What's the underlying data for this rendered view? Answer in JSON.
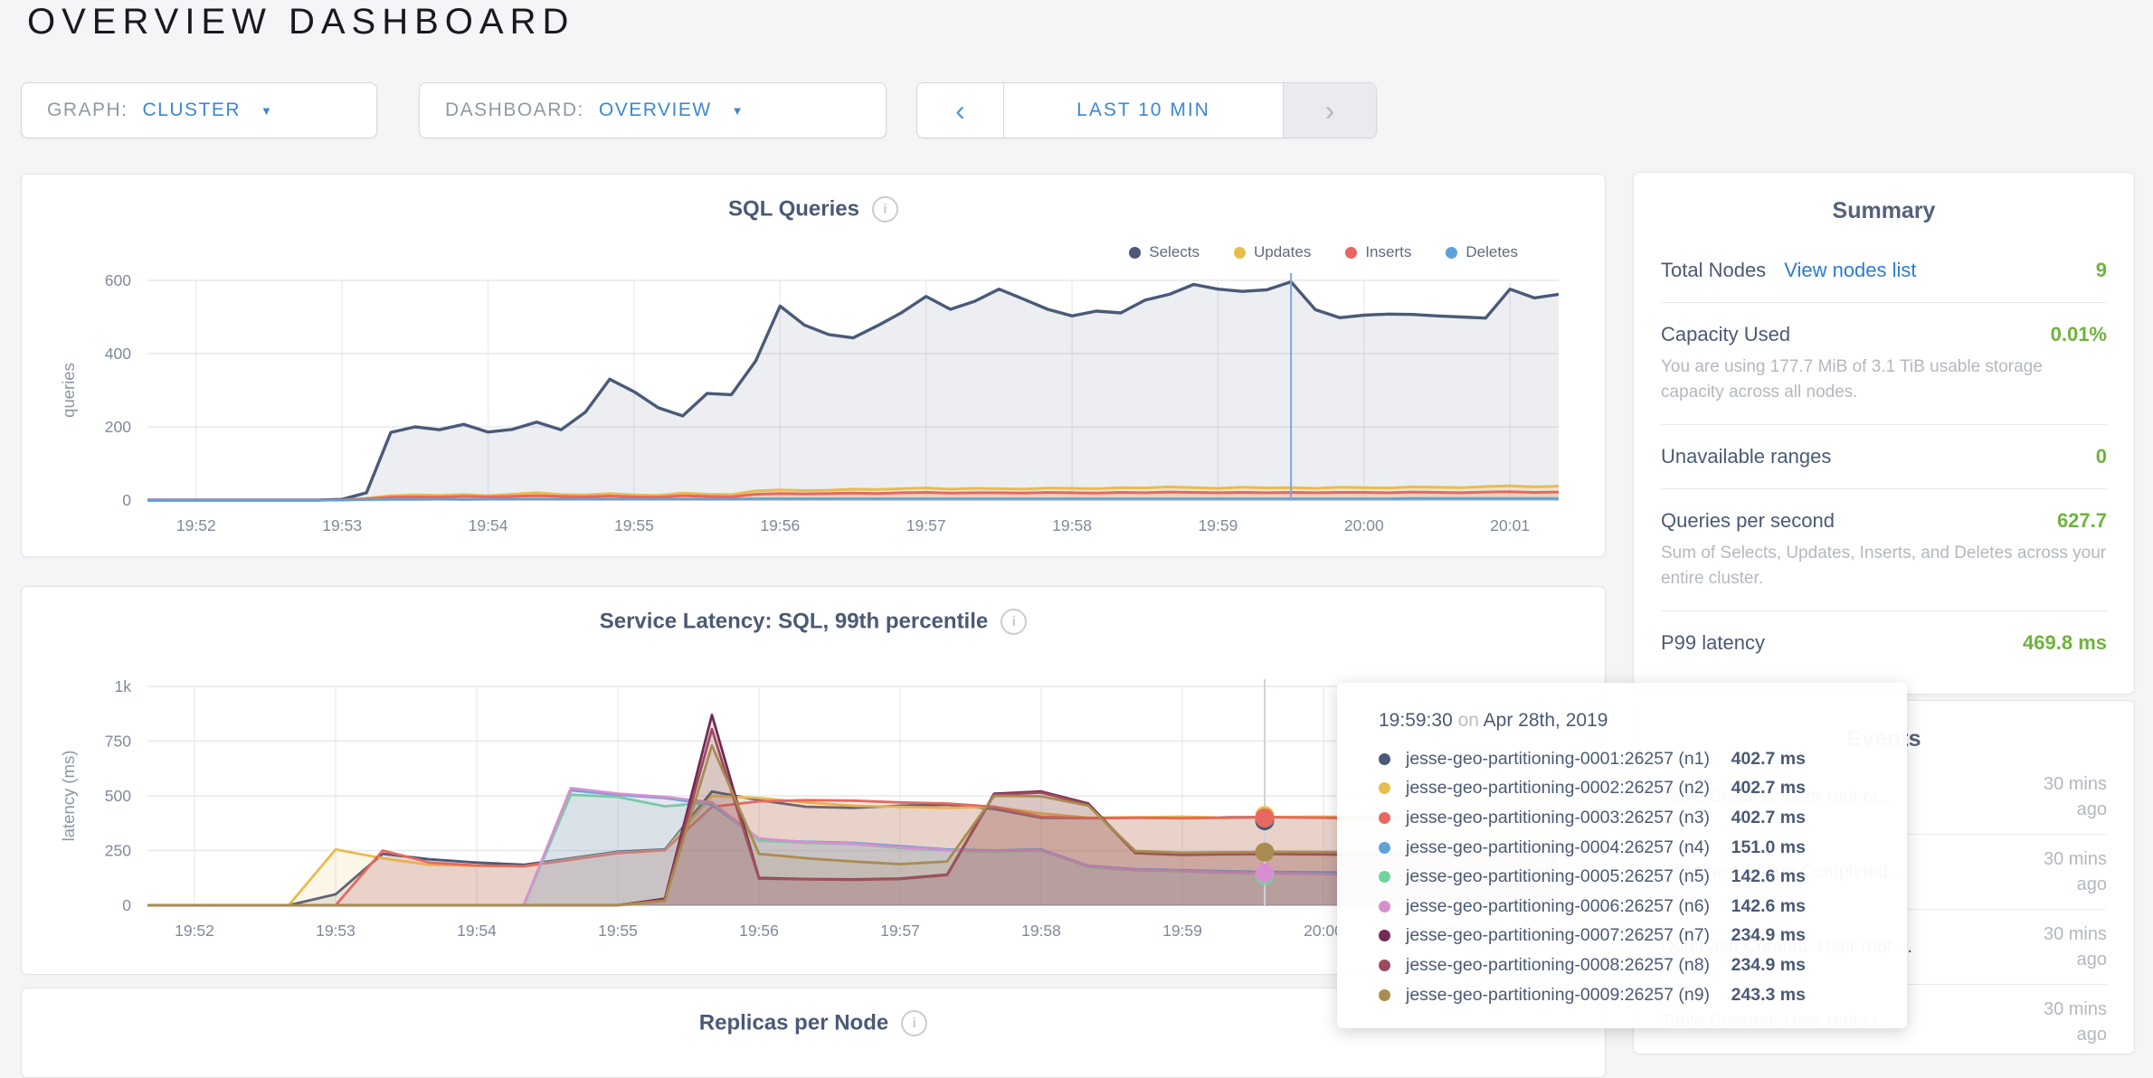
{
  "page": {
    "title": "OVERVIEW DASHBOARD"
  },
  "icons": {
    "caret": "▼",
    "prev": "‹",
    "next": "›",
    "info": "i"
  },
  "controls": {
    "graph_label": "GRAPH:",
    "graph_value": "CLUSTER",
    "dashboard_label": "DASHBOARD:",
    "dashboard_value": "OVERVIEW",
    "time_range": "LAST 10 MIN"
  },
  "colors": {
    "accent_blue": "#3d87d2",
    "link_blue": "#2d7ad3",
    "green": "#6fb33e",
    "slate": "#4a5a75"
  },
  "panels": {
    "replicas_title": "Replicas per Node"
  },
  "summary": {
    "title": "Summary",
    "total_nodes_label": "Total Nodes",
    "view_nodes_link": "View nodes list",
    "total_nodes_value": "9",
    "capacity_label": "Capacity Used",
    "capacity_value": "0.01%",
    "capacity_desc": "You are using 177.7 MiB of 3.1 TiB usable storage capacity across all nodes.",
    "unavailable_label": "Unavailable ranges",
    "unavailable_value": "0",
    "qps_label": "Queries per second",
    "qps_value": "627.7",
    "qps_desc": "Sum of Selects, Updates, Inserts, and Deletes across your entire cluster.",
    "p99_label": "P99 latency",
    "p99_value": "469.8 ms"
  },
  "events": {
    "title": "Events",
    "items": [
      {
        "text": "Table Created: User root cr...",
        "time": "30 mins ago"
      },
      {
        "text": "Schema Change Completed...",
        "time": "30 mins ago"
      },
      {
        "text": "Database Created: User root ...",
        "time": "30 mins ago"
      },
      {
        "text": "Table Created: User root cr...",
        "time": "30 mins ago"
      }
    ]
  },
  "tooltip": {
    "time": "19:59:30",
    "on": "on",
    "date": "Apr 28th, 2019",
    "rows": [
      {
        "color": "#4a5a78",
        "name": "jesse-geo-partitioning-0001:26257 (n1)",
        "value": "402.7 ms"
      },
      {
        "color": "#e9bc4e",
        "name": "jesse-geo-partitioning-0002:26257 (n2)",
        "value": "402.7 ms"
      },
      {
        "color": "#e7685f",
        "name": "jesse-geo-partitioning-0003:26257 (n3)",
        "value": "402.7 ms"
      },
      {
        "color": "#5ea2d9",
        "name": "jesse-geo-partitioning-0004:26257 (n4)",
        "value": "151.0 ms"
      },
      {
        "color": "#6fd39e",
        "name": "jesse-geo-partitioning-0005:26257 (n5)",
        "value": "142.6 ms"
      },
      {
        "color": "#d88fd0",
        "name": "jesse-geo-partitioning-0006:26257 (n6)",
        "value": "142.6 ms"
      },
      {
        "color": "#722b52",
        "name": "jesse-geo-partitioning-0007:26257 (n7)",
        "value": "234.9 ms"
      },
      {
        "color": "#9e4a5e",
        "name": "jesse-geo-partitioning-0008:26257 (n8)",
        "value": "234.9 ms"
      },
      {
        "color": "#a98c4f",
        "name": "jesse-geo-partitioning-0009:26257 (n9)",
        "value": "243.3 ms"
      }
    ]
  },
  "chart_data": [
    {
      "type": "area",
      "title": "SQL Queries",
      "ylabel": "queries",
      "ylim": [
        0,
        600
      ],
      "grid": true,
      "legend_position": "top-right",
      "x_start": "19:51:40",
      "x_step_s": 10,
      "x_ticks": [
        {
          "i": 2,
          "label": "19:52"
        },
        {
          "i": 8,
          "label": "19:53"
        },
        {
          "i": 14,
          "label": "19:54"
        },
        {
          "i": 20,
          "label": "19:55"
        },
        {
          "i": 26,
          "label": "19:56"
        },
        {
          "i": 32,
          "label": "19:57"
        },
        {
          "i": 38,
          "label": "19:58"
        },
        {
          "i": 44,
          "label": "19:59"
        },
        {
          "i": 50,
          "label": "20:00"
        },
        {
          "i": 56,
          "label": "20:01"
        }
      ],
      "y_ticks": [
        {
          "v": 600,
          "label": "600"
        },
        {
          "v": 400,
          "label": "400"
        },
        {
          "v": 200,
          "label": "200"
        },
        {
          "v": 0,
          "label": "0"
        }
      ],
      "crosshair": {
        "i": 47,
        "time": "19:59:30",
        "color": "#7fa6d9"
      },
      "series": [
        {
          "name": "Selects",
          "color": "#4a5a78",
          "fill": "rgba(73,91,120,0.10)",
          "values": [
            0,
            0,
            0,
            0,
            0,
            0,
            0,
            0,
            2,
            20,
            185,
            200,
            192,
            207,
            186,
            193,
            213,
            192,
            240,
            330,
            296,
            252,
            230,
            291,
            288,
            380,
            530,
            478,
            452,
            443,
            476,
            512,
            556,
            521,
            543,
            576,
            549,
            521,
            503,
            516,
            511,
            546,
            562,
            589,
            576,
            570,
            574,
            596,
            520,
            498,
            505,
            508,
            507,
            503,
            500,
            497,
            576,
            552,
            562
          ]
        },
        {
          "name": "Updates",
          "color": "#e9bc4e",
          "fill": "rgba(233,188,78,0.18)",
          "values": [
            0,
            0,
            0,
            0,
            0,
            0,
            0,
            0,
            0,
            5,
            12,
            14,
            13,
            15,
            12,
            16,
            20,
            15,
            14,
            18,
            14,
            13,
            19,
            16,
            15,
            25,
            28,
            26,
            27,
            30,
            29,
            31,
            33,
            30,
            32,
            31,
            30,
            33,
            32,
            31,
            34,
            33,
            36,
            34,
            32,
            35,
            33,
            34,
            32,
            35,
            34,
            33,
            36,
            35,
            34,
            37,
            39,
            36,
            38
          ]
        },
        {
          "name": "Inserts",
          "color": "#e7685f",
          "fill": "rgba(231,104,95,0.15)",
          "values": [
            0,
            0,
            0,
            0,
            0,
            0,
            0,
            0,
            0,
            3,
            8,
            9,
            8,
            10,
            9,
            10,
            12,
            10,
            9,
            11,
            9,
            8,
            12,
            10,
            9,
            16,
            18,
            17,
            18,
            19,
            18,
            20,
            21,
            19,
            20,
            20,
            19,
            21,
            20,
            19,
            21,
            20,
            22,
            21,
            20,
            21,
            20,
            21,
            20,
            21,
            21,
            20,
            22,
            21,
            20,
            22,
            23,
            21,
            22
          ]
        },
        {
          "name": "Deletes",
          "color": "#5ea2d9",
          "fill": "rgba(94,162,217,0.15)",
          "values": [
            0,
            0,
            0,
            0,
            0,
            0,
            0,
            0,
            0,
            1,
            2,
            2,
            3,
            2,
            3,
            3,
            3,
            3,
            3,
            3,
            3,
            3,
            3,
            3,
            3,
            4,
            4,
            4,
            4,
            4,
            4,
            4,
            4,
            4,
            4,
            4,
            4,
            4,
            4,
            4,
            4,
            4,
            4,
            4,
            4,
            4,
            4,
            4,
            4,
            4,
            4,
            4,
            5,
            5,
            5,
            5,
            5,
            5,
            5
          ]
        }
      ]
    },
    {
      "type": "area",
      "title": "Service Latency: SQL, 99th percentile",
      "ylabel": "latency (ms)",
      "ylim": [
        0,
        1000
      ],
      "grid": true,
      "x_start": "19:51:40",
      "x_step_s": 20,
      "x_ticks": [
        {
          "i": 1,
          "label": "19:52"
        },
        {
          "i": 4,
          "label": "19:53"
        },
        {
          "i": 7,
          "label": "19:54"
        },
        {
          "i": 10,
          "label": "19:55"
        },
        {
          "i": 13,
          "label": "19:56"
        },
        {
          "i": 16,
          "label": "19:57"
        },
        {
          "i": 19,
          "label": "19:58"
        },
        {
          "i": 22,
          "label": "19:59"
        },
        {
          "i": 25,
          "label": "20:00"
        },
        {
          "i": 28,
          "label": "20:01"
        }
      ],
      "y_ticks": [
        {
          "v": 1000,
          "label": "1k"
        },
        {
          "v": 750,
          "label": "750"
        },
        {
          "v": 500,
          "label": "500"
        },
        {
          "v": 250,
          "label": "250"
        },
        {
          "v": 0,
          "label": "0"
        }
      ],
      "crosshair": {
        "i": 23.75,
        "time": "19:59:30",
        "color": "#cfd2d6",
        "dots": [
          {
            "color": "#4a5a78",
            "v": 386
          },
          {
            "color": "#e9bc4e",
            "v": 410
          },
          {
            "color": "#e7685f",
            "v": 399
          },
          {
            "color": "#a98c4f",
            "v": 243
          },
          {
            "color": "#6fd39e",
            "v": 136
          },
          {
            "color": "#d88fd0",
            "v": 147
          }
        ]
      },
      "series": [
        {
          "name": "jesse-geo-partitioning-0001:26257 (n1)",
          "color": "#4a5a78",
          "fill": "rgba(74,90,120,0.13)",
          "values": [
            0,
            0,
            0,
            0,
            50,
            235,
            210,
            195,
            185,
            215,
            245,
            255,
            520,
            480,
            450,
            445,
            455,
            460,
            440,
            400,
            398,
            400,
            398,
            402,
            403,
            400,
            398,
            400,
            402,
            405,
            410
          ]
        },
        {
          "name": "jesse-geo-partitioning-0002:26257 (n2)",
          "color": "#e9bc4e",
          "fill": "rgba(233,188,78,0.13)",
          "values": [
            0,
            0,
            0,
            0,
            255,
            215,
            185,
            180,
            178,
            210,
            240,
            250,
            500,
            490,
            470,
            455,
            450,
            445,
            450,
            420,
            400,
            402,
            405,
            400,
            403,
            405,
            402,
            400,
            405,
            415,
            420
          ]
        },
        {
          "name": "jesse-geo-partitioning-0003:26257 (n3)",
          "color": "#e7685f",
          "fill": "rgba(231,104,95,0.13)",
          "values": [
            0,
            0,
            0,
            0,
            0,
            250,
            195,
            182,
            178,
            208,
            238,
            252,
            450,
            475,
            480,
            478,
            470,
            465,
            450,
            405,
            398,
            400,
            398,
            400,
            402,
            400,
            398,
            400,
            402,
            405,
            408
          ]
        },
        {
          "name": "jesse-geo-partitioning-0004:26257 (n4)",
          "color": "#5ea2d9",
          "fill": "rgba(94,162,217,0.13)",
          "values": [
            0,
            0,
            0,
            0,
            0,
            0,
            0,
            0,
            0,
            525,
            505,
            490,
            460,
            300,
            290,
            285,
            270,
            255,
            250,
            255,
            180,
            165,
            160,
            155,
            152,
            150,
            148,
            150,
            150,
            148,
            150
          ]
        },
        {
          "name": "jesse-geo-partitioning-0005:26257 (n5)",
          "color": "#6fd39e",
          "fill": "rgba(111,211,158,0.13)",
          "values": [
            0,
            0,
            0,
            0,
            0,
            0,
            0,
            0,
            0,
            505,
            495,
            452,
            470,
            295,
            285,
            280,
            262,
            250,
            246,
            250,
            175,
            160,
            155,
            148,
            145,
            143,
            141,
            140,
            142,
            140,
            143
          ]
        },
        {
          "name": "jesse-geo-partitioning-0006:26257 (n6)",
          "color": "#d88fd0",
          "fill": "rgba(216,143,208,0.13)",
          "values": [
            0,
            0,
            0,
            0,
            0,
            0,
            0,
            0,
            0,
            535,
            510,
            495,
            470,
            305,
            288,
            282,
            265,
            252,
            248,
            252,
            178,
            162,
            157,
            150,
            146,
            143,
            142,
            141,
            143,
            141,
            144
          ]
        },
        {
          "name": "jesse-geo-partitioning-0007:26257 (n7)",
          "color": "#722b52",
          "fill": "rgba(114,43,82,0.13)",
          "values": [
            0,
            0,
            0,
            0,
            0,
            0,
            0,
            0,
            0,
            0,
            0,
            30,
            870,
            125,
            120,
            118,
            122,
            140,
            510,
            520,
            465,
            240,
            232,
            234,
            235,
            233,
            231,
            233,
            230,
            232,
            234
          ]
        },
        {
          "name": "jesse-geo-partitioning-0008:26257 (n8)",
          "color": "#9e4a5e",
          "fill": "rgba(158,74,94,0.13)",
          "values": [
            0,
            0,
            0,
            0,
            0,
            0,
            0,
            0,
            0,
            0,
            0,
            25,
            805,
            122,
            118,
            116,
            120,
            138,
            505,
            515,
            460,
            238,
            230,
            233,
            234,
            232,
            230,
            232,
            229,
            231,
            233
          ]
        },
        {
          "name": "jesse-geo-partitioning-0009:26257 (n9)",
          "color": "#a98c4f",
          "fill": "rgba(169,140,79,0.13)",
          "values": [
            0,
            0,
            0,
            0,
            0,
            0,
            0,
            0,
            0,
            0,
            0,
            20,
            730,
            235,
            215,
            200,
            188,
            200,
            500,
            498,
            455,
            248,
            240,
            242,
            244,
            243,
            241,
            243,
            240,
            242,
            244
          ]
        }
      ]
    }
  ]
}
